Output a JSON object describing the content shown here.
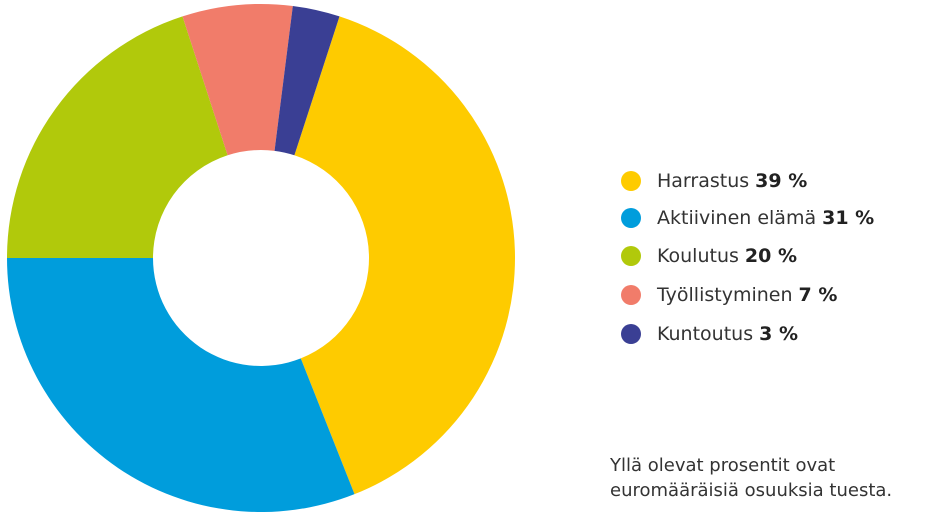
{
  "chart_data": {
    "type": "donut",
    "categories": [
      "Harrastus",
      "Aktiivinen elämä",
      "Koulutus",
      "Työllistyminen",
      "Kuntoutus"
    ],
    "values": [
      39,
      31,
      20,
      7,
      3
    ],
    "value_labels": [
      "39 %",
      "31 %",
      "20 %",
      "7 %",
      "3 %"
    ],
    "colors": [
      "#fecb00",
      "#009ddc",
      "#b1c90b",
      "#f17c6a",
      "#3a3f94"
    ],
    "legend": "right",
    "note": [
      "Yllä olevat prosentit ovat",
      "euromääräisiä osuuksia tuesta."
    ]
  }
}
